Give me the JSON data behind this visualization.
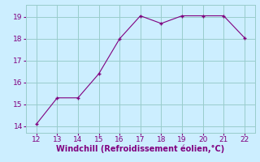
{
  "x": [
    12,
    13,
    14,
    15,
    16,
    17,
    18,
    19,
    20,
    21,
    22
  ],
  "y": [
    14.1,
    15.3,
    15.3,
    16.4,
    18.0,
    19.05,
    18.7,
    19.05,
    19.05,
    19.05,
    18.05
  ],
  "line_color": "#800080",
  "marker_color": "#800080",
  "bg_color": "#cceeff",
  "grid_color": "#99cccc",
  "xlabel": "Windchill (Refroidissement éolien,°C)",
  "xlim": [
    11.5,
    22.5
  ],
  "ylim": [
    13.7,
    19.55
  ],
  "xticks": [
    12,
    13,
    14,
    15,
    16,
    17,
    18,
    19,
    20,
    21,
    22
  ],
  "yticks": [
    14,
    15,
    16,
    17,
    18,
    19
  ],
  "xlabel_color": "#800080",
  "tick_color": "#800080",
  "font_size": 6.5,
  "xlabel_fontsize": 7.0
}
